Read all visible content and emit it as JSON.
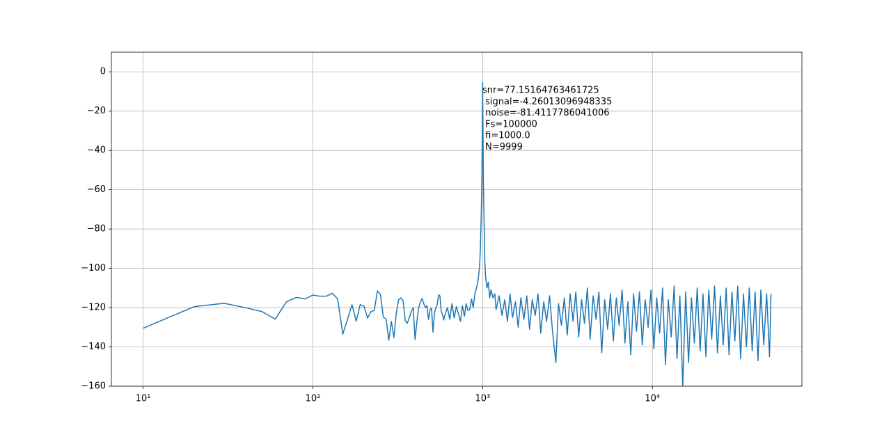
{
  "chart_data": {
    "type": "line",
    "xscale": "log",
    "grid": true,
    "color": "#1f77b4",
    "xlim": [
      6.5,
      76000
    ],
    "ylim": [
      -160,
      10
    ],
    "xticks": [
      {
        "value": 10,
        "label": "10¹"
      },
      {
        "value": 100,
        "label": "10²"
      },
      {
        "value": 1000,
        "label": "10³"
      },
      {
        "value": 10000,
        "label": "10⁴"
      }
    ],
    "yticks": [
      0,
      {
        "value": -20,
        "label": "−20"
      },
      {
        "value": -40,
        "label": "−40"
      },
      {
        "value": -60,
        "label": "−60"
      },
      {
        "value": -80,
        "label": "−80"
      },
      {
        "value": -100,
        "label": "−100"
      },
      {
        "value": -120,
        "label": "−120"
      },
      {
        "value": -140,
        "label": "−140"
      },
      {
        "value": -160,
        "label": "−160"
      }
    ],
    "annotation": [
      "snr=77.15164763461725",
      " signal=-4.26013096948335",
      " noise=-81.4117786041006",
      " Fs=100000",
      " fi=1000.0",
      " N=9999"
    ],
    "x": [
      10,
      20,
      30,
      40,
      50,
      60,
      70,
      80,
      90,
      100,
      110,
      120,
      130,
      140,
      150,
      160,
      170,
      180,
      190,
      200,
      210,
      220,
      230,
      240,
      250,
      260,
      270,
      280,
      290,
      300,
      310,
      320,
      330,
      340,
      350,
      360,
      370,
      380,
      390,
      400,
      410,
      420,
      430,
      440,
      450,
      460,
      470,
      480,
      490,
      500,
      510,
      520,
      530,
      540,
      550,
      560,
      570,
      580,
      590,
      600,
      620,
      640,
      660,
      680,
      700,
      720,
      740,
      760,
      780,
      800,
      820,
      840,
      860,
      880,
      900,
      920,
      940,
      960,
      970,
      980,
      990,
      1000,
      1010,
      1020,
      1030,
      1040,
      1060,
      1080,
      1100,
      1120,
      1150,
      1180,
      1200,
      1250,
      1300,
      1350,
      1400,
      1450,
      1500,
      1560,
      1620,
      1680,
      1750,
      1820,
      1890,
      1960,
      2040,
      2120,
      2200,
      2290,
      2380,
      2480,
      2580,
      2700,
      2800,
      2910,
      3030,
      3150,
      3280,
      3410,
      3540,
      3680,
      3830,
      3980,
      4140,
      4300,
      4480,
      4660,
      4840,
      5030,
      5240,
      5450,
      5660,
      5890,
      6130,
      6370,
      6630,
      6890,
      7170,
      7460,
      7750,
      8060,
      8390,
      8720,
      9070,
      9440,
      9810,
      10200,
      10610,
      11040,
      11480,
      11940,
      12410,
      12910,
      13430,
      13960,
      14520,
      15100,
      15710,
      16330,
      16990,
      17670,
      18370,
      19110,
      19870,
      20670,
      21500,
      22360,
      23250,
      24180,
      25150,
      26150,
      27200,
      28290,
      29420,
      30600,
      31820,
      33090,
      34420,
      35790,
      37230,
      38720,
      40270,
      41880,
      43550,
      45290,
      47110,
      48990,
      49990
    ],
    "values": [
      -130.5,
      -119.5,
      -117.8,
      -120,
      -122,
      -125.8,
      -117,
      -114.8,
      -115.6,
      -113.6,
      -114.2,
      -114.2,
      -112.7,
      -115.6,
      -133.5,
      -126,
      -118.5,
      -126.9,
      -118.5,
      -119.3,
      -125.3,
      -122,
      -121.5,
      -111.5,
      -113.3,
      -124.8,
      -125.8,
      -136.6,
      -127,
      -135.2,
      -122.8,
      -116,
      -115,
      -116.5,
      -126.7,
      -128,
      -125,
      -122,
      -120,
      -136.3,
      -127,
      -120,
      -117,
      -115.4,
      -118,
      -120,
      -119,
      -126,
      -121,
      -120.3,
      -132.5,
      -123,
      -120,
      -118.5,
      -113.5,
      -114,
      -122,
      -123.5,
      -126.3,
      -123.5,
      -120,
      -126,
      -118,
      -125.3,
      -119.5,
      -123,
      -127,
      -119,
      -124.5,
      -118,
      -121.5,
      -121,
      -115.6,
      -120,
      -113,
      -110,
      -106,
      -99,
      -90,
      -75,
      -55,
      -5.5,
      -55,
      -76,
      -96,
      -104,
      -110,
      -107,
      -115,
      -111,
      -115,
      -113,
      -121,
      -114,
      -124,
      -116,
      -127,
      -113,
      -125,
      -117,
      -130,
      -115,
      -126,
      -114,
      -131,
      -116,
      -124,
      -113,
      -133,
      -117,
      -127,
      -114,
      -132,
      -148,
      -118,
      -129,
      -115,
      -134,
      -113,
      -127,
      -112,
      -135,
      -116,
      -128,
      -110,
      -136,
      -114,
      -126,
      -112,
      -143,
      -116,
      -131,
      -113,
      -137,
      -115,
      -129,
      -111,
      -138,
      -117,
      -144,
      -113,
      -132,
      -112,
      -139,
      -116,
      -130,
      -111,
      -141,
      -115,
      -133,
      -110,
      -149,
      -116,
      -135,
      -109,
      -146,
      -114,
      -160,
      -112,
      -148,
      -115,
      -138,
      -110,
      -142,
      -113,
      -145,
      -111,
      -136,
      -109,
      -143,
      -114,
      -139,
      -110,
      -144,
      -112,
      -137,
      -109,
      -146,
      -113,
      -140,
      -110,
      -142,
      -112,
      -147,
      -111,
      -139,
      -113,
      -145,
      -113
    ]
  }
}
